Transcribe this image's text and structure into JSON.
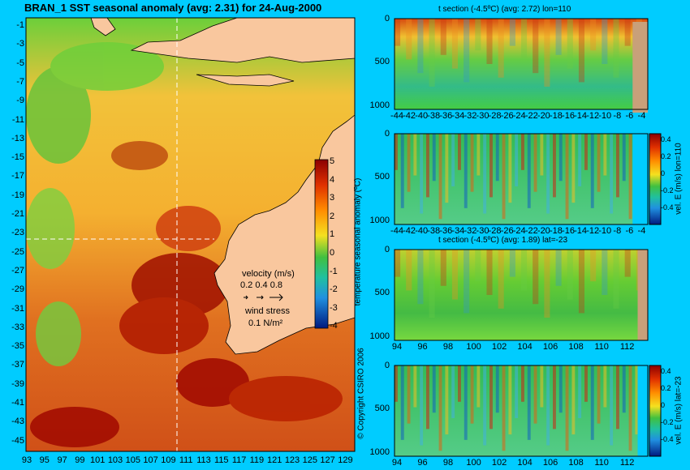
{
  "main_title": "BRAN_1  SST seasonal anomaly  (avg: 2.31)  for 24-Aug-2000",
  "copyright": "© Copyright CSIRO 2006",
  "map": {
    "lat_ticks": [
      "-1",
      "-3",
      "-5",
      "-7",
      "-9",
      "-11",
      "-13",
      "-15",
      "-17",
      "-19",
      "-21",
      "-23",
      "-25",
      "-27",
      "-29",
      "-31",
      "-33",
      "-35",
      "-37",
      "-39",
      "-41",
      "-43",
      "-45"
    ],
    "lon_ticks": [
      "93",
      "95",
      "97",
      "99",
      "101",
      "103",
      "105",
      "107",
      "109",
      "111",
      "113",
      "115",
      "117",
      "119",
      "121",
      "123",
      "125",
      "127",
      "129"
    ],
    "colorbar_label": "temperature seasonal anomaly (ºC)",
    "colorbar_ticks": [
      "5",
      "4",
      "3",
      "2",
      "1",
      "0",
      "-1",
      "-2",
      "-3",
      "-4"
    ],
    "velocity_label": "velocity (m/s)",
    "velocity_scale": "0.2 0.4 0.8",
    "wind_label": "wind stress",
    "wind_value": "0.1 N/m²",
    "section_lines": {
      "lon": 110,
      "lat": -23
    }
  },
  "panels": [
    {
      "title": "t section (-4.5ºC) (avg: 2.72) lon=110",
      "y_ticks": [
        "0",
        "500",
        "1000"
      ],
      "x_ticks": [
        "-44",
        "-42",
        "-40",
        "-38",
        "-36",
        "-34",
        "-32",
        "-30",
        "-28",
        "-26",
        "-24",
        "-22",
        "-20",
        "-18",
        "-16",
        "-14",
        "-12",
        "-10",
        "-8",
        "-6",
        "-4"
      ],
      "colorbar": null
    },
    {
      "title": "",
      "y_ticks": [
        "0",
        "500",
        "1000"
      ],
      "x_ticks": [
        "-44",
        "-42",
        "-40",
        "-38",
        "-36",
        "-34",
        "-32",
        "-30",
        "-28",
        "-26",
        "-24",
        "-22",
        "-20",
        "-18",
        "-16",
        "-14",
        "-12",
        "-10",
        "-8",
        "-6",
        "-4"
      ],
      "colorbar": {
        "label": "vel. E (m/s) lon=110",
        "ticks": [
          "0.4",
          "0.2",
          "0",
          "-0.2",
          "-0.4"
        ]
      }
    },
    {
      "title": "t section (-4.5ºC) (avg: 1.89) lat=-23",
      "y_ticks": [
        "0",
        "500",
        "1000"
      ],
      "x_ticks": [
        "94",
        "96",
        "98",
        "100",
        "102",
        "104",
        "106",
        "108",
        "110",
        "112"
      ],
      "colorbar": null
    },
    {
      "title": "",
      "y_ticks": [
        "0",
        "500",
        "1000"
      ],
      "x_ticks": [
        "94",
        "96",
        "98",
        "100",
        "102",
        "104",
        "106",
        "108",
        "110",
        "112"
      ],
      "colorbar": {
        "label": "vel. E (m/s) lat=-23",
        "ticks": [
          "0.4",
          "0.2",
          "0",
          "-0.2",
          "-0.4"
        ]
      }
    }
  ],
  "colors": {
    "background": "#00ccff",
    "land": "#f9c79e",
    "section_land": "#c8a07a",
    "hot": "#9b0000",
    "warm": "#ff8800",
    "neutral": "#22bb44",
    "cold": "#0022aa"
  },
  "chart_data": [
    {
      "type": "heatmap",
      "title": "BRAN_1  SST seasonal anomaly  (avg: 2.31)  for 24-Aug-2000",
      "xlabel": "",
      "ylabel": "",
      "xlim": [
        93,
        130
      ],
      "ylim": [
        -45,
        0
      ],
      "colorbar_range": [
        -4,
        5
      ],
      "average": 2.31
    },
    {
      "type": "heatmap",
      "title": "t section (-4.5ºC) (avg: 2.72) lon=110",
      "xlim": [
        -45,
        -2
      ],
      "ylim": [
        1050,
        0
      ],
      "average": 2.72
    },
    {
      "type": "heatmap",
      "title": "",
      "xlim": [
        -45,
        -2
      ],
      "ylim": [
        1050,
        0
      ],
      "colorbar_range": [
        -0.5,
        0.5
      ]
    },
    {
      "type": "heatmap",
      "title": "t section (-4.5ºC) (avg: 1.89) lat=-23",
      "xlim": [
        93,
        114
      ],
      "ylim": [
        1050,
        0
      ],
      "average": 1.89
    },
    {
      "type": "heatmap",
      "title": "",
      "xlim": [
        93,
        114
      ],
      "ylim": [
        1050,
        0
      ],
      "colorbar_range": [
        -0.5,
        0.5
      ]
    }
  ]
}
